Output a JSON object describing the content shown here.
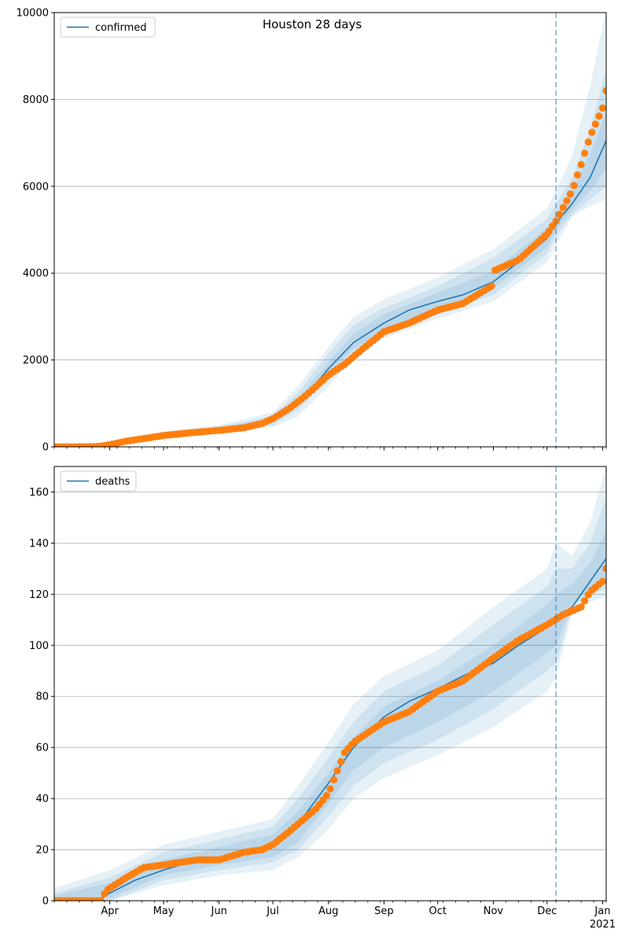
{
  "title": "Houston 28 days",
  "colors": {
    "model_line": "#1f77b4",
    "observed": "#ff7f0e",
    "band": "#1f77b4",
    "forecast_line": "#1f77b4",
    "grid": "#b0b0b0"
  },
  "chart_data": [
    {
      "type": "line",
      "legend": "confirmed",
      "legend_position": "top-left",
      "x_start": "2020-03-01",
      "x_end": "2021-01-03",
      "forecast_start": "2020-12-06",
      "ylim": [
        0,
        10000
      ],
      "yticks": [
        0,
        2000,
        4000,
        6000,
        8000,
        10000
      ],
      "grid": "y",
      "xtick_labels": [
        "Apr",
        "May",
        "Jun",
        "Jul",
        "Aug",
        "Sep",
        "Oct",
        "Nov",
        "Dec",
        "Jan"
      ],
      "year_label": "",
      "model": {
        "dates": [
          "2020-03-01",
          "2020-03-15",
          "2020-03-25",
          "2020-04-01",
          "2020-04-15",
          "2020-05-01",
          "2020-05-15",
          "2020-06-01",
          "2020-06-15",
          "2020-06-25",
          "2020-07-01",
          "2020-07-10",
          "2020-07-20",
          "2020-08-01",
          "2020-08-15",
          "2020-09-01",
          "2020-09-15",
          "2020-10-01",
          "2020-10-15",
          "2020-11-01",
          "2020-11-15",
          "2020-12-01",
          "2020-12-06",
          "2020-12-15",
          "2020-12-25",
          "2021-01-03"
        ],
        "values": [
          0,
          0,
          10,
          60,
          170,
          270,
          330,
          390,
          430,
          500,
          600,
          820,
          1200,
          1800,
          2400,
          2850,
          3150,
          3350,
          3500,
          3800,
          4250,
          4800,
          5150,
          5600,
          6200,
          7050
        ]
      },
      "bands": {
        "dates": [
          "2020-03-01",
          "2020-04-01",
          "2020-05-01",
          "2020-06-01",
          "2020-07-01",
          "2020-07-15",
          "2020-08-01",
          "2020-08-15",
          "2020-09-01",
          "2020-10-01",
          "2020-11-01",
          "2020-12-01",
          "2020-12-06",
          "2020-12-15",
          "2020-12-25",
          "2021-01-03"
        ],
        "outer_lo": [
          0,
          30,
          200,
          300,
          450,
          700,
          1400,
          2000,
          2500,
          2950,
          3350,
          4250,
          4650,
          5300,
          5550,
          5700
        ],
        "outer_hi": [
          20,
          110,
          350,
          500,
          800,
          1400,
          2300,
          3000,
          3400,
          3900,
          4550,
          5500,
          5900,
          6700,
          8300,
          10100
        ],
        "mid_lo": [
          0,
          40,
          220,
          330,
          500,
          850,
          1550,
          2150,
          2600,
          3050,
          3500,
          4450,
          4850,
          5350,
          5700,
          6000
        ],
        "mid_hi": [
          10,
          90,
          320,
          460,
          720,
          1250,
          2150,
          2800,
          3200,
          3700,
          4350,
          5250,
          5600,
          6200,
          7300,
          8700
        ],
        "inner_lo": [
          0,
          50,
          240,
          360,
          560,
          950,
          1700,
          2250,
          2700,
          3150,
          3650,
          4600,
          5000,
          5450,
          5900,
          6400
        ],
        "inner_hi": [
          5,
          75,
          300,
          430,
          660,
          1100,
          1950,
          2600,
          3050,
          3550,
          4050,
          5050,
          5350,
          5900,
          6750,
          7700
        ]
      },
      "observed": {
        "dates": [
          "2020-03-01",
          "2020-03-20",
          "2020-03-26",
          "2020-04-01",
          "2020-04-10",
          "2020-04-20",
          "2020-05-01",
          "2020-05-15",
          "2020-06-01",
          "2020-06-15",
          "2020-06-25",
          "2020-07-01",
          "2020-07-10",
          "2020-07-20",
          "2020-08-01",
          "2020-08-10",
          "2020-08-20",
          "2020-09-01",
          "2020-09-15",
          "2020-10-01",
          "2020-10-15",
          "2020-10-31",
          "2020-11-01",
          "2020-11-15",
          "2020-12-01",
          "2020-12-06",
          "2020-12-15",
          "2020-12-20",
          "2020-12-25",
          "2021-01-01",
          "2021-01-03"
        ],
        "values": [
          0,
          0,
          10,
          50,
          130,
          190,
          260,
          320,
          380,
          440,
          540,
          650,
          880,
          1200,
          1650,
          1900,
          2250,
          2650,
          2850,
          3150,
          3300,
          3700,
          4050,
          4300,
          4900,
          5200,
          5900,
          6500,
          7150,
          7800,
          8200
        ]
      }
    },
    {
      "type": "line",
      "legend": "deaths",
      "legend_position": "top-left",
      "x_start": "2020-03-01",
      "x_end": "2021-01-03",
      "forecast_start": "2020-12-06",
      "ylim": [
        0,
        170
      ],
      "yticks": [
        0,
        20,
        40,
        60,
        80,
        100,
        120,
        140,
        160
      ],
      "grid": "y",
      "xtick_labels": [
        "Apr",
        "May",
        "Jun",
        "Jul",
        "Aug",
        "Sep",
        "Oct",
        "Nov",
        "Dec",
        "Jan"
      ],
      "year_label": "2021",
      "model": {
        "dates": [
          "2020-03-01",
          "2020-03-25",
          "2020-04-01",
          "2020-04-15",
          "2020-05-01",
          "2020-05-15",
          "2020-06-01",
          "2020-06-15",
          "2020-07-01",
          "2020-07-15",
          "2020-08-01",
          "2020-08-15",
          "2020-09-01",
          "2020-09-15",
          "2020-10-01",
          "2020-10-15",
          "2020-11-01",
          "2020-11-15",
          "2020-12-01",
          "2020-12-06",
          "2020-12-15",
          "2020-12-25",
          "2021-01-03"
        ],
        "values": [
          0,
          0,
          3,
          8,
          12,
          15,
          17,
          18,
          22,
          30,
          46,
          60,
          72,
          78,
          83,
          88,
          93,
          100,
          107,
          110,
          115,
          125,
          134
        ]
      },
      "bands": {
        "dates": [
          "2020-03-01",
          "2020-04-01",
          "2020-05-01",
          "2020-06-01",
          "2020-07-01",
          "2020-07-15",
          "2020-08-01",
          "2020-08-15",
          "2020-09-01",
          "2020-10-01",
          "2020-11-01",
          "2020-12-01",
          "2020-12-06",
          "2020-12-15",
          "2020-12-25",
          "2021-01-03"
        ],
        "outer_lo": [
          0,
          0,
          6,
          10,
          12,
          17,
          28,
          40,
          48,
          57,
          68,
          82,
          88,
          113,
          117,
          119
        ],
        "outer_hi": [
          5,
          12,
          22,
          27,
          32,
          45,
          62,
          77,
          88,
          98,
          115,
          130,
          140,
          135,
          148,
          170
        ],
        "mid_lo": [
          0,
          0,
          8,
          12,
          15,
          20,
          33,
          45,
          54,
          63,
          75,
          90,
          93,
          115,
          120,
          122
        ],
        "mid_hi": [
          3,
          9,
          19,
          24,
          29,
          40,
          56,
          70,
          82,
          92,
          108,
          123,
          130,
          130,
          140,
          158
        ],
        "inner_lo": [
          0,
          1,
          10,
          14,
          17,
          23,
          38,
          51,
          60,
          70,
          82,
          97,
          100,
          116,
          122,
          126
        ],
        "inner_hi": [
          2,
          7,
          16,
          21,
          26,
          35,
          50,
          64,
          76,
          86,
          100,
          116,
          120,
          124,
          132,
          145
        ]
      },
      "observed": {
        "dates": [
          "2020-03-01",
          "2020-03-27",
          "2020-03-30",
          "2020-04-10",
          "2020-04-20",
          "2020-05-01",
          "2020-05-10",
          "2020-05-20",
          "2020-06-01",
          "2020-06-15",
          "2020-06-25",
          "2020-07-01",
          "2020-07-10",
          "2020-07-20",
          "2020-07-25",
          "2020-08-01",
          "2020-08-10",
          "2020-08-15",
          "2020-09-01",
          "2020-09-15",
          "2020-10-01",
          "2020-10-15",
          "2020-11-01",
          "2020-11-15",
          "2020-12-01",
          "2020-12-10",
          "2020-12-20",
          "2020-12-25",
          "2021-01-01",
          "2021-01-03"
        ],
        "values": [
          0,
          0,
          4,
          9,
          13,
          14,
          15,
          16,
          16,
          19,
          20,
          22,
          27,
          33,
          36,
          42,
          58,
          62,
          70,
          74,
          82,
          86,
          95,
          102,
          108,
          112,
          115,
          121,
          125,
          130
        ]
      }
    }
  ]
}
